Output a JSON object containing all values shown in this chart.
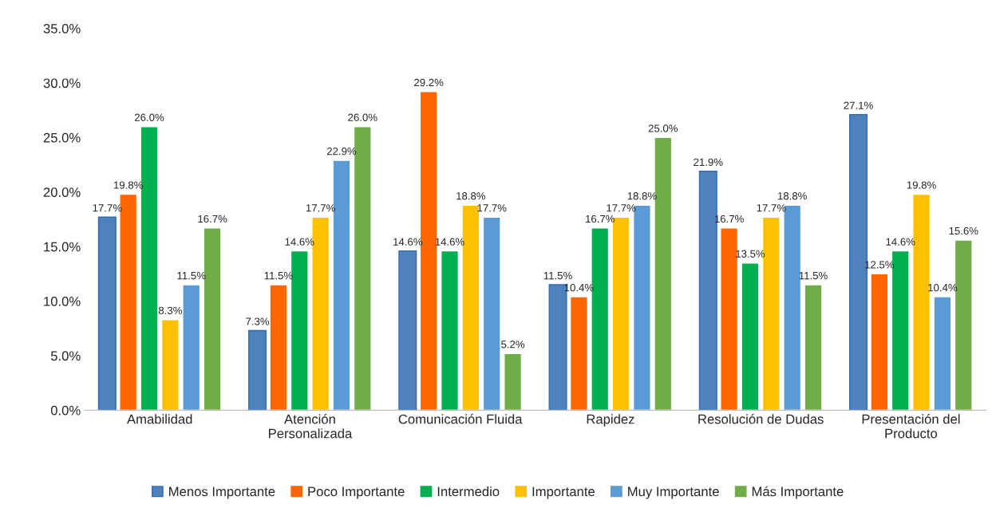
{
  "chart_data": {
    "type": "bar",
    "categories": [
      "Amabilidad",
      "Atención\nPersonalizada",
      "Comunicación Fluida",
      "Rapidez",
      "Resolución de Dudas",
      "Presentación del\nProducto"
    ],
    "series": [
      {
        "name": "Menos Importante",
        "color": "#4f81bd",
        "values": [
          17.7,
          7.3,
          14.6,
          11.5,
          21.9,
          27.1
        ],
        "value_labels": [
          "17.7%",
          "7.3%",
          "14.6%",
          "11.5%",
          "21.9%",
          "27.1%"
        ]
      },
      {
        "name": "Poco Importante",
        "color": "#ff6600",
        "values": [
          19.8,
          11.5,
          29.2,
          10.4,
          16.7,
          12.5
        ],
        "value_labels": [
          "19.8%",
          "11.5%",
          "29.2%",
          "10.4%",
          "16.7%",
          "12.5%"
        ]
      },
      {
        "name": "Intermedio",
        "color": "#00b050",
        "values": [
          26.0,
          14.6,
          14.6,
          16.7,
          13.5,
          14.6
        ],
        "value_labels": [
          "26.0%",
          "14.6%",
          "14.6%",
          "16.7%",
          "13.5%",
          "14.6%"
        ]
      },
      {
        "name": "Importante",
        "color": "#ffc000",
        "values": [
          8.3,
          17.7,
          18.8,
          17.7,
          17.7,
          19.8
        ],
        "value_labels": [
          "8.3%",
          "17.7%",
          "18.8%",
          "17.7%",
          "17.7%",
          "19.8%"
        ]
      },
      {
        "name": "Muy Importante",
        "color": "#5b9bd5",
        "values": [
          11.5,
          22.9,
          17.7,
          18.8,
          18.8,
          10.4
        ],
        "value_labels": [
          "11.5%",
          "22.9%",
          "17.7%",
          "18.8%",
          "18.8%",
          "10.4%"
        ]
      },
      {
        "name": "Más Importante",
        "color": "#70ad47",
        "values": [
          16.7,
          26.0,
          5.2,
          25.0,
          11.5,
          15.6
        ],
        "value_labels": [
          "16.7%",
          "26.0%",
          "5.2%",
          "25.0%",
          "11.5%",
          "15.6%"
        ]
      }
    ],
    "ylim": [
      0,
      35
    ],
    "yticks": [
      {
        "value": 0,
        "label": "0.0%"
      },
      {
        "value": 5,
        "label": "5.0%"
      },
      {
        "value": 10,
        "label": "10.0%"
      },
      {
        "value": 15,
        "label": "15.0%"
      },
      {
        "value": 20,
        "label": "20.0%"
      },
      {
        "value": 25,
        "label": "25.0%"
      },
      {
        "value": 30,
        "label": "30.0%"
      },
      {
        "value": 35,
        "label": "35.0%"
      }
    ],
    "grid": false,
    "legend": "bottom"
  }
}
